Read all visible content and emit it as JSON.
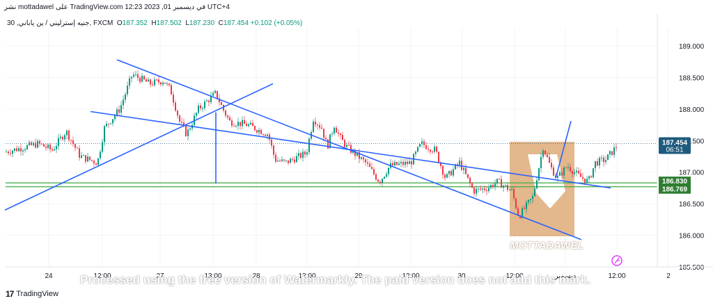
{
  "header": {
    "top_line": "نشر mottadawel على TradingView.com 12:23 2023 ,01 في ديسمبر UTC+4",
    "symbol": "جنيه إسترليني / ين ياباني, 30, FXCM",
    "ohlc": [
      {
        "label": "O",
        "value": "187.352"
      },
      {
        "label": "H",
        "value": "187.502"
      },
      {
        "label": "L",
        "value": "187.230"
      },
      {
        "label": "C",
        "value": "187.454"
      }
    ],
    "change": "+0.102 (+0.05%)"
  },
  "footer": {
    "brand": "TradingView",
    "watermark": "Processed using the free version of Watermarkly. The paid version does not add this mark.",
    "logo_text": "MOTTADAWEL"
  },
  "colors": {
    "up": "#089981",
    "down": "#f23645",
    "trendline": "#2962ff",
    "horizontal": "#4caf50",
    "price_label": "#1e5a7e",
    "support_label": "#2e7d32",
    "logo": "#d9a066"
  },
  "chart_data": {
    "type": "candlestick",
    "y_axis": {
      "ticks": [
        189.0,
        188.5,
        188.0,
        187.5,
        187.0,
        186.5,
        186.0,
        185.5
      ],
      "tick_labels": [
        "189.000",
        "188.500",
        "188.000",
        "187.500",
        "187.000",
        "186.500",
        "186.000",
        "185.500"
      ],
      "range": [
        185.45,
        189.35
      ]
    },
    "x_axis": {
      "labels": [
        "24",
        "12:00",
        "27",
        "13:00",
        "28",
        "12:00",
        "29",
        "12:00",
        "30",
        "12:00",
        "ديسمبر",
        "12:00",
        "2"
      ]
    },
    "price_path": [
      [
        0,
        187.3
      ],
      [
        55,
        187.45
      ],
      [
        75,
        187.35
      ],
      [
        95,
        187.65
      ],
      [
        115,
        187.25
      ],
      [
        140,
        187.15
      ],
      [
        150,
        187.7
      ],
      [
        172,
        188.0
      ],
      [
        190,
        188.55
      ],
      [
        215,
        188.4
      ],
      [
        235,
        188.45
      ],
      [
        245,
        188.3
      ],
      [
        258,
        187.8
      ],
      [
        268,
        187.6
      ],
      [
        285,
        188.0
      ],
      [
        310,
        188.25
      ],
      [
        320,
        188.0
      ],
      [
        330,
        187.8
      ],
      [
        355,
        187.75
      ],
      [
        385,
        187.6
      ],
      [
        395,
        187.2
      ],
      [
        410,
        187.15
      ],
      [
        440,
        187.3
      ],
      [
        450,
        187.85
      ],
      [
        462,
        187.7
      ],
      [
        470,
        187.4
      ],
      [
        480,
        187.75
      ],
      [
        488,
        187.55
      ],
      [
        498,
        187.4
      ],
      [
        525,
        187.15
      ],
      [
        545,
        186.85
      ],
      [
        560,
        187.1
      ],
      [
        590,
        187.15
      ],
      [
        605,
        187.45
      ],
      [
        625,
        187.35
      ],
      [
        640,
        186.9
      ],
      [
        660,
        187.15
      ],
      [
        680,
        186.7
      ],
      [
        700,
        186.75
      ],
      [
        715,
        186.85
      ],
      [
        735,
        186.7
      ],
      [
        745,
        186.3
      ],
      [
        765,
        186.6
      ],
      [
        780,
        187.4
      ],
      [
        790,
        187.1
      ],
      [
        800,
        186.9
      ],
      [
        815,
        187.1
      ],
      [
        830,
        186.95
      ],
      [
        845,
        186.85
      ],
      [
        855,
        187.15
      ],
      [
        870,
        187.2
      ],
      [
        885,
        187.4
      ],
      [
        888,
        187.45
      ]
    ],
    "current_price": {
      "value": 187.454,
      "label": "187.454",
      "countdown": "06:51"
    },
    "horizontal_levels": [
      {
        "value": 186.83,
        "label": "186.830"
      },
      {
        "value": 186.769,
        "label": "186.769"
      }
    ],
    "trendlines": [
      {
        "from": [
          168,
          188.78
        ],
        "to": [
          835,
          185.93
        ]
      },
      {
        "from": [
          130,
          187.96
        ],
        "to": [
          877,
          186.75
        ]
      },
      {
        "from": [
          7,
          186.4
        ],
        "to": [
          392,
          188.4
        ]
      },
      {
        "from": [
          798,
          186.9
        ],
        "to": [
          820,
          187.81
        ]
      },
      {
        "from": [
          310,
          187.95
        ],
        "to": [
          310,
          186.82
        ]
      }
    ],
    "grid": true
  }
}
